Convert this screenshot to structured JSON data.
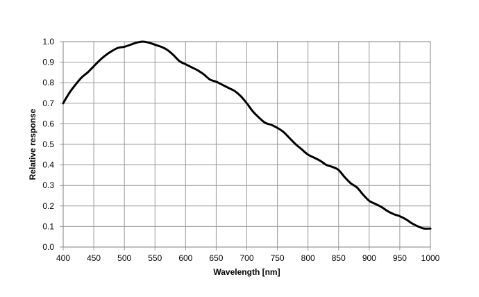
{
  "chart_data": {
    "type": "line",
    "title": "",
    "xlabel": "Wavelength [nm]",
    "ylabel": "Relative response",
    "xlim": [
      400,
      1000
    ],
    "ylim": [
      0,
      1.0
    ],
    "x_ticks": [
      400,
      450,
      500,
      550,
      600,
      650,
      700,
      750,
      800,
      850,
      900,
      950,
      1000
    ],
    "y_ticks": [
      "0.0",
      "0.1",
      "0.2",
      "0.3",
      "0.4",
      "0.5",
      "0.6",
      "0.7",
      "0.8",
      "0.9",
      "1.0"
    ],
    "grid": true,
    "legend": "none",
    "colors": {
      "line": "#000000",
      "grid": "#9a9a9a"
    },
    "series": [
      {
        "x": [
          400,
          410,
          420,
          430,
          440,
          450,
          460,
          470,
          480,
          490,
          500,
          510,
          520,
          530,
          540,
          550,
          560,
          570,
          580,
          590,
          600,
          610,
          620,
          630,
          640,
          650,
          660,
          670,
          680,
          690,
          700,
          710,
          720,
          730,
          740,
          750,
          760,
          770,
          780,
          790,
          800,
          810,
          820,
          830,
          840,
          850,
          860,
          870,
          880,
          890,
          900,
          910,
          920,
          930,
          940,
          950,
          960,
          970,
          980,
          990,
          1000
        ],
        "y": [
          0.7,
          0.75,
          0.79,
          0.825,
          0.85,
          0.88,
          0.91,
          0.935,
          0.955,
          0.97,
          0.975,
          0.985,
          0.995,
          1.0,
          0.995,
          0.985,
          0.975,
          0.96,
          0.935,
          0.905,
          0.89,
          0.875,
          0.86,
          0.84,
          0.815,
          0.805,
          0.79,
          0.775,
          0.76,
          0.735,
          0.7,
          0.66,
          0.63,
          0.605,
          0.595,
          0.58,
          0.56,
          0.53,
          0.5,
          0.475,
          0.45,
          0.435,
          0.42,
          0.4,
          0.39,
          0.375,
          0.34,
          0.31,
          0.29,
          0.255,
          0.225,
          0.21,
          0.195,
          0.175,
          0.16,
          0.15,
          0.135,
          0.115,
          0.1,
          0.09,
          0.09
        ]
      }
    ]
  }
}
